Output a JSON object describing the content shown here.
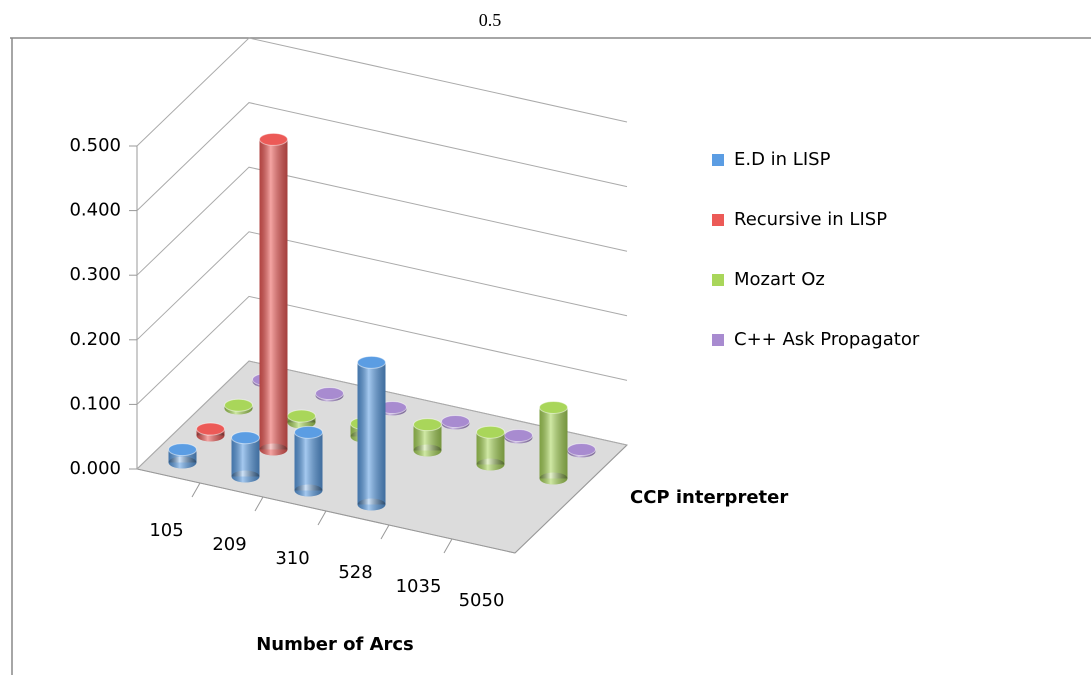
{
  "chart_data": {
    "type": "bar3d",
    "title": "0.5",
    "categories": [
      "105",
      "209",
      "310",
      "528",
      "1035",
      "5050"
    ],
    "series": [
      {
        "name": "E.D in LISP",
        "color": "#5b9de3",
        "values": [
          0.02,
          0.06,
          0.09,
          0.22,
          null,
          null
        ]
      },
      {
        "name": "Recursive in LISP",
        "color": "#ec5a57",
        "values": [
          0.01,
          0.48,
          null,
          null,
          null,
          null
        ]
      },
      {
        "name": "Mozart Oz",
        "color": "#a9d65a",
        "values": [
          0.005,
          0.01,
          0.02,
          0.04,
          0.05,
          0.11
        ]
      },
      {
        "name": "C++ Ask Propagator",
        "color": "#a88bd0",
        "values": [
          0.003,
          0.003,
          0.003,
          0.003,
          0.003,
          0.003
        ]
      }
    ],
    "x_label": "Number of Arcs",
    "z_label": "CCP interpreter",
    "ylim": [
      0,
      0.5
    ],
    "yticks": [
      {
        "value": 0,
        "label": "0.000"
      },
      {
        "value": 0.1,
        "label": "0.100"
      },
      {
        "value": 0.2,
        "label": "0.200"
      },
      {
        "value": 0.3,
        "label": "0.300"
      },
      {
        "value": 0.4,
        "label": "0.400"
      },
      {
        "value": 0.5,
        "label": "0.500"
      }
    ],
    "grid": true,
    "legend": "right"
  }
}
